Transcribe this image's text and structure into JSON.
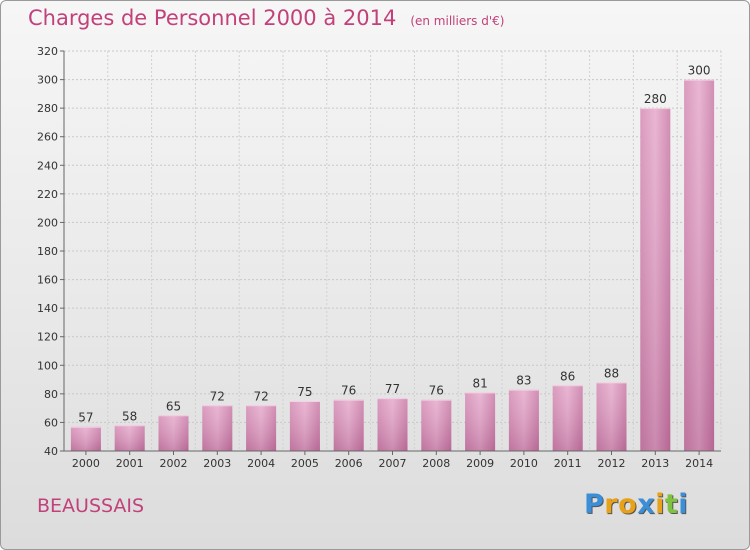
{
  "header": {
    "title": "Charges de Personnel 2000 à 2014",
    "unit": "(en milliers d'€)"
  },
  "footer": {
    "commune": "BEAUSSAIS",
    "brand": "Proxiti",
    "brand_colors": [
      "#3a8fd8",
      "#e8a21a",
      "#e8a21a",
      "#3a8fd8",
      "#e8a21a",
      "#7fc241",
      "#3a8fd8"
    ]
  },
  "chart_data": {
    "type": "bar",
    "categories": [
      "2000",
      "2001",
      "2002",
      "2003",
      "2004",
      "2005",
      "2006",
      "2007",
      "2008",
      "2009",
      "2010",
      "2011",
      "2012",
      "2013",
      "2014"
    ],
    "values": [
      57,
      58,
      65,
      72,
      72,
      75,
      76,
      77,
      76,
      81,
      83,
      86,
      88,
      280,
      300
    ],
    "data_labels": [
      "57",
      "58",
      "65",
      "72",
      "72",
      "75",
      "76",
      "77",
      "76",
      "81",
      "83",
      "86",
      "88",
      "280",
      "300"
    ],
    "title": "Charges de Personnel 2000 à 2014",
    "xlabel": "",
    "ylabel": "",
    "ylim": [
      40,
      320
    ],
    "yticks": [
      40,
      60,
      80,
      100,
      120,
      140,
      160,
      180,
      200,
      220,
      240,
      260,
      280,
      300,
      320
    ],
    "grid": true,
    "bar_color": "#d87fb0"
  }
}
